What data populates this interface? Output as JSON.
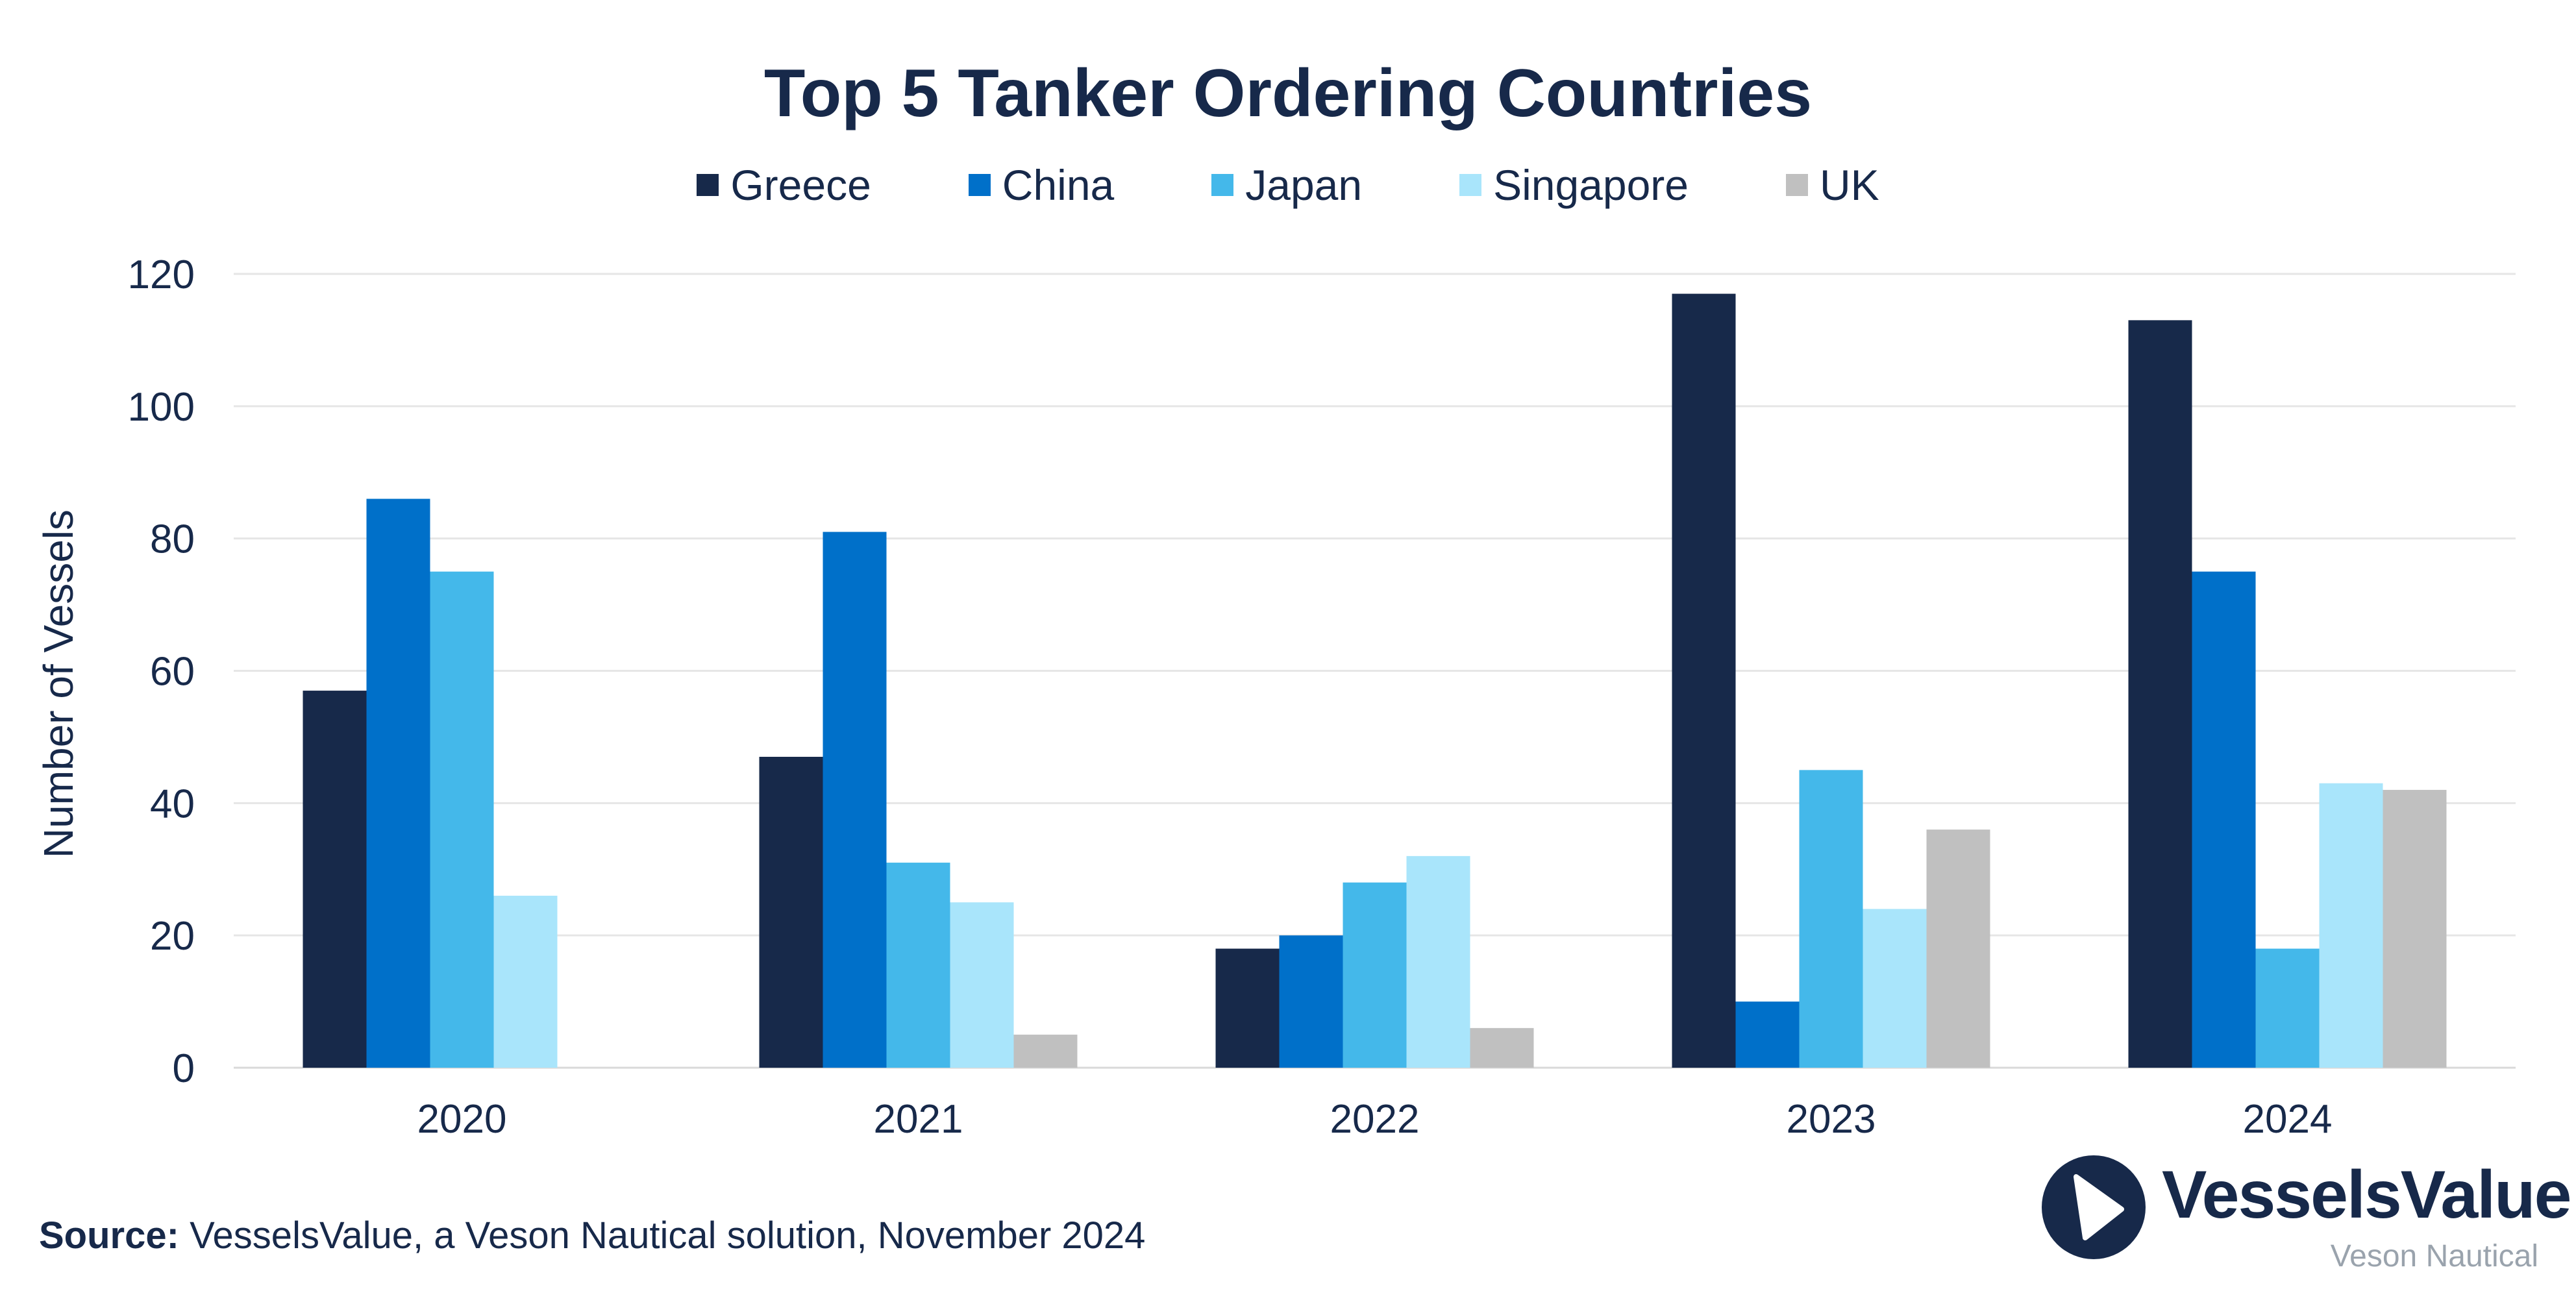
{
  "chart_data": {
    "type": "bar",
    "title": "Top 5 Tanker Ordering Countries",
    "ylabel": "Number of Vessels",
    "xlabel": "",
    "ylim": [
      0,
      120
    ],
    "yticks": [
      0,
      20,
      40,
      60,
      80,
      100,
      120
    ],
    "categories": [
      "2020",
      "2021",
      "2022",
      "2023",
      "2024"
    ],
    "grid": true,
    "legend_position": "top-center",
    "series": [
      {
        "name": "Greece",
        "color": "#17294a",
        "values": [
          57,
          47,
          18,
          117,
          113
        ]
      },
      {
        "name": "China",
        "color": "#0070c9",
        "values": [
          86,
          81,
          20,
          10,
          75
        ]
      },
      {
        "name": "Japan",
        "color": "#44b8ea",
        "values": [
          75,
          31,
          28,
          45,
          18
        ]
      },
      {
        "name": "Singapore",
        "color": "#a9e5fb",
        "values": [
          26,
          25,
          32,
          24,
          43
        ]
      },
      {
        "name": "UK",
        "color": "#c0c0c0",
        "values": [
          0,
          5,
          6,
          36,
          42
        ]
      }
    ]
  },
  "source": {
    "label": "Source:",
    "text": " VesselsValue, a Veson Nautical solution, November 2024"
  },
  "brand": {
    "name": "VesselsValue",
    "subtitle": "Veson Nautical",
    "logo_icon": "vesselsvalue-logo-icon"
  }
}
